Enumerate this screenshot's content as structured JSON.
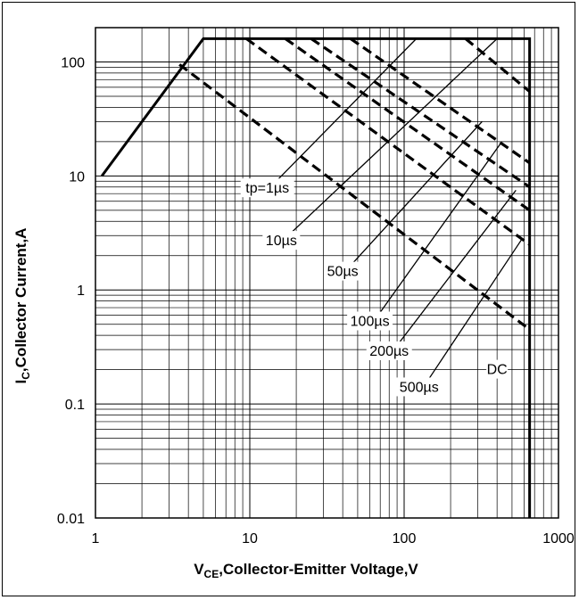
{
  "chart_data": {
    "type": "line",
    "title": "",
    "x_scale": "log",
    "y_scale": "log",
    "xlim": [
      1,
      1000
    ],
    "ylim": [
      0.01,
      200
    ],
    "grid": true,
    "xlabel": {
      "main": "V",
      "sub": "CE",
      "rest": ",Collector-Emitter Voltage,V"
    },
    "ylabel": {
      "main": "I",
      "sub": "C",
      "rest": ",Collector Current,A"
    },
    "x_ticks": [
      {
        "value": 1,
        "label": "1"
      },
      {
        "value": 10,
        "label": "10"
      },
      {
        "value": 100,
        "label": "100"
      },
      {
        "value": 1000,
        "label": "1000"
      }
    ],
    "y_ticks": [
      {
        "value": 100,
        "label": "100"
      },
      {
        "value": 10,
        "label": "10"
      },
      {
        "value": 1,
        "label": "1"
      },
      {
        "value": 0.1,
        "label": "0.1"
      },
      {
        "value": 0.01,
        "label": "0.01"
      }
    ],
    "boundary": {
      "style": "solid",
      "points": [
        [
          1.1,
          10
        ],
        [
          5,
          160
        ],
        [
          650,
          160
        ],
        [
          650,
          0.01
        ]
      ]
    },
    "series": [
      {
        "label": "DC",
        "style": "dashed",
        "points": [
          [
            3.5,
            95
          ],
          [
            650,
            0.45
          ]
        ]
      },
      {
        "label": "500µs",
        "style": "dashed",
        "points": [
          [
            9.5,
            160
          ],
          [
            650,
            2.5
          ]
        ]
      },
      {
        "label": "200µs",
        "style": "dashed",
        "points": [
          [
            17,
            160
          ],
          [
            650,
            5
          ]
        ]
      },
      {
        "label": "100µs",
        "style": "dashed",
        "points": [
          [
            25,
            160
          ],
          [
            650,
            8
          ]
        ]
      },
      {
        "label": "50µs",
        "style": "dashed",
        "points": [
          [
            45,
            160
          ],
          [
            650,
            13
          ]
        ]
      },
      {
        "label": "10µs",
        "style": "dashed",
        "points": [
          [
            250,
            160
          ],
          [
            650,
            55
          ]
        ]
      }
    ],
    "annotations": [
      {
        "text": "tp=1µs",
        "at": [
          13,
          7.8
        ],
        "line_to": [
          120,
          160
        ]
      },
      {
        "text": "10µs",
        "at": [
          16,
          2.7
        ],
        "line_to": [
          400,
          160
        ]
      },
      {
        "text": "50µs",
        "at": [
          40,
          1.45
        ],
        "line_to": [
          320,
          30
        ]
      },
      {
        "text": "100µs",
        "at": [
          60,
          0.53
        ],
        "line_to": [
          430,
          20
        ]
      },
      {
        "text": "200µs",
        "at": [
          80,
          0.29
        ],
        "line_to": [
          530,
          7.5
        ]
      },
      {
        "text": "500µs",
        "at": [
          125,
          0.14
        ],
        "line_to": [
          580,
          2.8
        ]
      },
      {
        "text": "DC",
        "at": [
          400,
          0.2
        ],
        "line_to": null
      }
    ]
  }
}
